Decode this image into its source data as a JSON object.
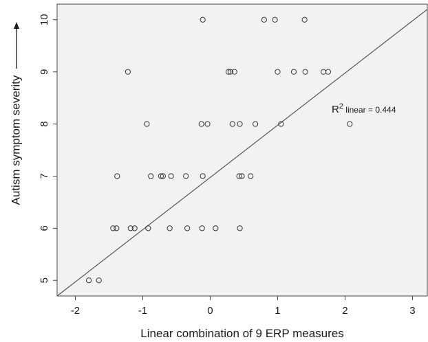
{
  "chart_data": {
    "type": "scatter",
    "title": "",
    "xlabel": "Linear combination of 9 ERP measures",
    "ylabel": "Autism symptom severity",
    "xlim": [
      -2.27,
      3.22
    ],
    "ylim": [
      4.7,
      10.3
    ],
    "x_ticks": [
      "-2",
      "-1",
      "0",
      "1",
      "2",
      "3"
    ],
    "y_ticks": [
      "5",
      "6",
      "7",
      "8",
      "9",
      "10"
    ],
    "grid": false,
    "background": "#f2f2f2",
    "marker": "open-circle",
    "points": [
      {
        "x": -1.8,
        "y": 5
      },
      {
        "x": -1.65,
        "y": 5
      },
      {
        "x": -1.44,
        "y": 6
      },
      {
        "x": -1.39,
        "y": 6
      },
      {
        "x": -1.18,
        "y": 6
      },
      {
        "x": -1.12,
        "y": 6
      },
      {
        "x": -0.92,
        "y": 6
      },
      {
        "x": -0.6,
        "y": 6
      },
      {
        "x": -0.34,
        "y": 6
      },
      {
        "x": -0.12,
        "y": 6
      },
      {
        "x": 0.08,
        "y": 6
      },
      {
        "x": 0.44,
        "y": 6
      },
      {
        "x": -1.38,
        "y": 7
      },
      {
        "x": -0.88,
        "y": 7
      },
      {
        "x": -0.73,
        "y": 7
      },
      {
        "x": -0.7,
        "y": 7
      },
      {
        "x": -0.58,
        "y": 7
      },
      {
        "x": -0.36,
        "y": 7
      },
      {
        "x": -0.11,
        "y": 7
      },
      {
        "x": 0.43,
        "y": 7
      },
      {
        "x": 0.47,
        "y": 7
      },
      {
        "x": 0.6,
        "y": 7
      },
      {
        "x": -0.94,
        "y": 8
      },
      {
        "x": -0.13,
        "y": 8
      },
      {
        "x": -0.04,
        "y": 8
      },
      {
        "x": 0.33,
        "y": 8
      },
      {
        "x": 0.44,
        "y": 8
      },
      {
        "x": 0.67,
        "y": 8
      },
      {
        "x": 1.05,
        "y": 8
      },
      {
        "x": 2.07,
        "y": 8
      },
      {
        "x": -1.22,
        "y": 9
      },
      {
        "x": 0.27,
        "y": 9
      },
      {
        "x": 0.3,
        "y": 9
      },
      {
        "x": 0.36,
        "y": 9
      },
      {
        "x": 1.0,
        "y": 9
      },
      {
        "x": 1.24,
        "y": 9
      },
      {
        "x": 1.41,
        "y": 9
      },
      {
        "x": 1.68,
        "y": 9
      },
      {
        "x": 1.75,
        "y": 9
      },
      {
        "x": -0.11,
        "y": 10
      },
      {
        "x": 0.8,
        "y": 10
      },
      {
        "x": 0.96,
        "y": 10
      },
      {
        "x": 1.4,
        "y": 10
      }
    ],
    "fit_line": {
      "x": [
        -2.27,
        3.22
      ],
      "y": [
        4.7,
        10.2
      ]
    },
    "annotation": {
      "prefix": "R",
      "superscript": "2",
      "subscript": " linear",
      "value": " = 0.444"
    }
  }
}
